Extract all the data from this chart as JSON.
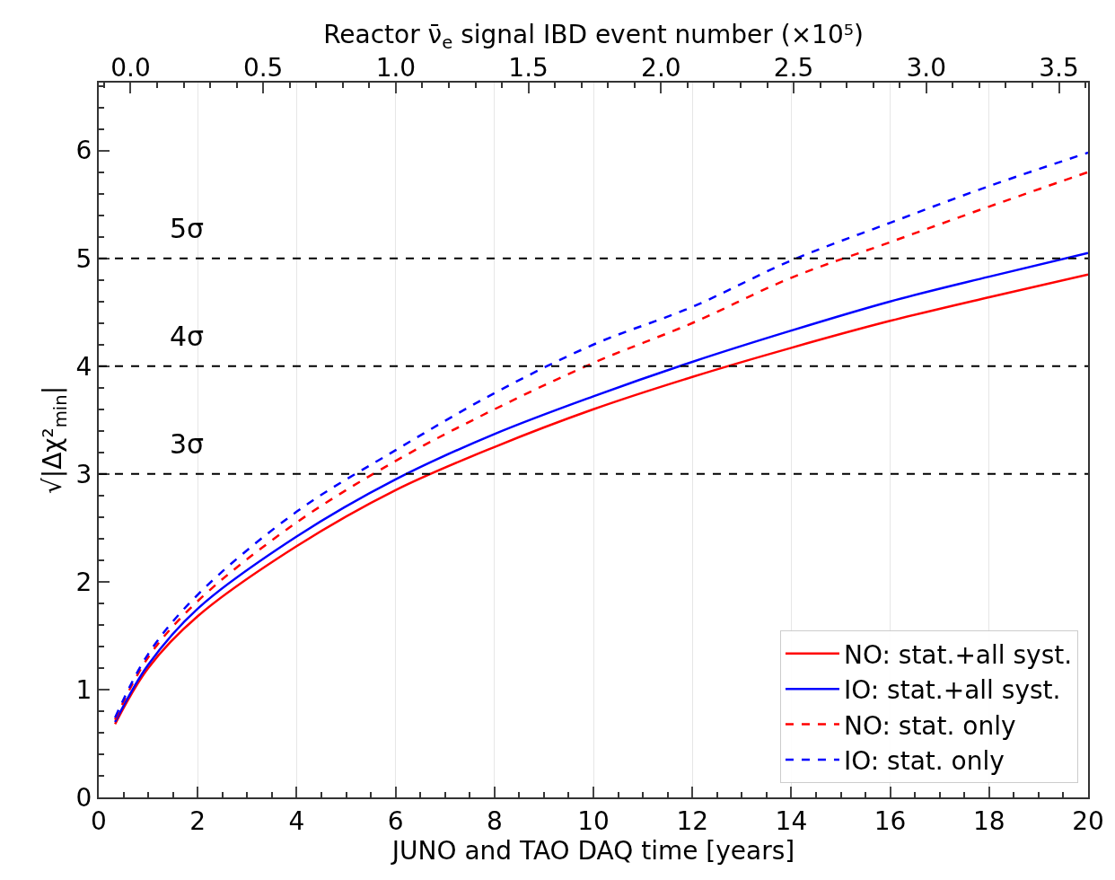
{
  "chart_data": {
    "type": "line",
    "xlabel": "JUNO and TAO DAQ time [years]",
    "ylabel": "√|Δχ²$_{min}$|",
    "x2label": "Reactor ν̄$_{e}$ signal IBD event number (×10⁵)",
    "xlim": [
      0,
      20
    ],
    "xticks": [
      0,
      2,
      4,
      6,
      8,
      10,
      12,
      14,
      16,
      18,
      20
    ],
    "ylim": [
      0,
      6.63
    ],
    "yticks": [
      0,
      1,
      2,
      3,
      4,
      5,
      6
    ],
    "x2lim": [
      -0.12,
      3.61
    ],
    "x2ticks": [
      {
        "value": 0,
        "label": "0.0"
      },
      0.5,
      {
        "value": 1,
        "label": "1.0"
      },
      1.5,
      {
        "value": 2,
        "label": "2.0"
      },
      2.5,
      {
        "value": 3,
        "label": "3.0"
      },
      3.5
    ],
    "x": [
      0.33,
      1,
      2,
      4,
      6,
      8,
      10,
      12,
      14,
      16,
      18,
      20
    ],
    "series": [
      {
        "name": "NO: stat.+all syst.",
        "color": "#ff0000",
        "line_style": "solid",
        "values": [
          0.68,
          1.2,
          1.68,
          2.33,
          2.85,
          3.25,
          3.6,
          3.9,
          4.17,
          4.42,
          4.64,
          4.85
        ]
      },
      {
        "name": "IO: stat.+all syst.",
        "color": "#0000ff",
        "line_style": "solid",
        "values": [
          0.7,
          1.23,
          1.75,
          2.42,
          2.95,
          3.37,
          3.72,
          4.04,
          4.33,
          4.6,
          4.83,
          5.05
        ]
      },
      {
        "name": "NO: stat. only",
        "color": "#ff0000",
        "line_style": "dashed",
        "values": [
          0.72,
          1.3,
          1.82,
          2.55,
          3.12,
          3.6,
          4.03,
          4.4,
          4.82,
          5.15,
          5.48,
          5.8
        ]
      },
      {
        "name": "IO: stat. only",
        "color": "#0000ff",
        "line_style": "dashed",
        "values": [
          0.74,
          1.33,
          1.88,
          2.65,
          3.22,
          3.75,
          4.2,
          4.55,
          4.98,
          5.33,
          5.67,
          5.98
        ]
      }
    ],
    "ref_lines": [
      {
        "axis": "y",
        "value": 3,
        "label": "3σ",
        "color": "#000000",
        "line_style": "dashed"
      },
      {
        "axis": "y",
        "value": 4,
        "label": "4σ",
        "color": "#000000",
        "line_style": "dashed"
      },
      {
        "axis": "y",
        "value": 5,
        "label": "5σ",
        "color": "#000000",
        "line_style": "dashed"
      }
    ],
    "grid": "x",
    "legend": "bottom right",
    "marker": "none"
  }
}
